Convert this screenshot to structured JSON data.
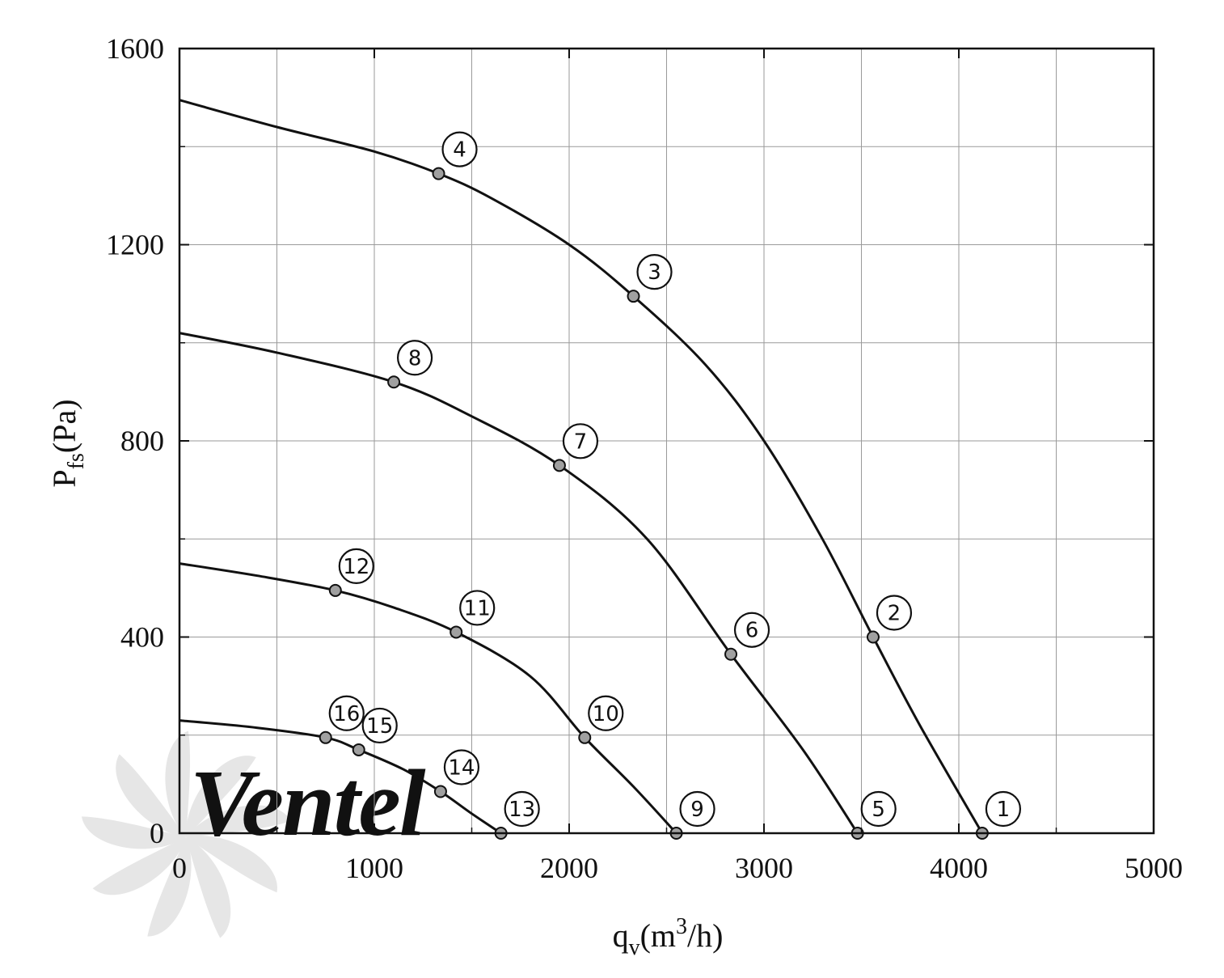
{
  "colors": {
    "curve": "#111111",
    "marker_fill": "#a0a0a0",
    "grid": "#9a9a9a",
    "frame": "#111111",
    "watermark": "#e6e6e6",
    "watermark_accent": "#d8e3ef"
  },
  "watermark": {
    "text": "Ventel"
  },
  "chart_data": {
    "type": "line",
    "title": "",
    "xlabel": {
      "main": "q",
      "sub": "v",
      "unit_open": "(m",
      "sup": "3",
      "unit_close": "/h)"
    },
    "ylabel": {
      "main": "P",
      "sub": "fs",
      "unit": "(Pa)"
    },
    "xlim": [
      0,
      5000
    ],
    "ylim": [
      0,
      1600
    ],
    "x_ticks": [
      0,
      1000,
      2000,
      3000,
      4000,
      5000
    ],
    "x_tick_labels": [
      "0",
      "1000",
      "2000",
      "3000",
      "4000",
      "5000"
    ],
    "y_ticks": [
      0,
      400,
      800,
      1200,
      1600
    ],
    "y_tick_labels": [
      "0",
      "400",
      "800",
      "1200",
      "1600"
    ],
    "grid": true,
    "series": [
      {
        "name": "curve-1",
        "curve": [
          [
            0,
            1495
          ],
          [
            500,
            1440
          ],
          [
            1000,
            1390
          ],
          [
            1330,
            1345
          ],
          [
            1600,
            1295
          ],
          [
            2000,
            1200
          ],
          [
            2330,
            1095
          ],
          [
            2700,
            955
          ],
          [
            3000,
            800
          ],
          [
            3300,
            600
          ],
          [
            3560,
            400
          ],
          [
            3800,
            220
          ],
          [
            4120,
            0
          ]
        ],
        "points": [
          {
            "label": "1",
            "x": 4120,
            "y": 0
          },
          {
            "label": "2",
            "x": 3560,
            "y": 400
          },
          {
            "label": "3",
            "x": 2330,
            "y": 1095
          },
          {
            "label": "4",
            "x": 1330,
            "y": 1345
          }
        ]
      },
      {
        "name": "curve-2",
        "curve": [
          [
            0,
            1020
          ],
          [
            500,
            980
          ],
          [
            1100,
            920
          ],
          [
            1500,
            850
          ],
          [
            1950,
            750
          ],
          [
            2400,
            600
          ],
          [
            2830,
            365
          ],
          [
            3200,
            170
          ],
          [
            3480,
            0
          ]
        ],
        "points": [
          {
            "label": "5",
            "x": 3480,
            "y": 0
          },
          {
            "label": "6",
            "x": 2830,
            "y": 365
          },
          {
            "label": "7",
            "x": 1950,
            "y": 750
          },
          {
            "label": "8",
            "x": 1100,
            "y": 920
          }
        ]
      },
      {
        "name": "curve-3",
        "curve": [
          [
            0,
            550
          ],
          [
            400,
            525
          ],
          [
            800,
            495
          ],
          [
            1100,
            460
          ],
          [
            1420,
            410
          ],
          [
            1800,
            320
          ],
          [
            2080,
            195
          ],
          [
            2330,
            95
          ],
          [
            2550,
            0
          ]
        ],
        "points": [
          {
            "label": "9",
            "x": 2550,
            "y": 0
          },
          {
            "label": "10",
            "x": 2080,
            "y": 195
          },
          {
            "label": "11",
            "x": 1420,
            "y": 410
          },
          {
            "label": "12",
            "x": 800,
            "y": 495
          }
        ]
      },
      {
        "name": "curve-4",
        "curve": [
          [
            0,
            230
          ],
          [
            400,
            215
          ],
          [
            750,
            195
          ],
          [
            920,
            170
          ],
          [
            1150,
            130
          ],
          [
            1340,
            85
          ],
          [
            1500,
            40
          ],
          [
            1650,
            0
          ]
        ],
        "points": [
          {
            "label": "13",
            "x": 1650,
            "y": 0
          },
          {
            "label": "14",
            "x": 1340,
            "y": 85
          },
          {
            "label": "15",
            "x": 920,
            "y": 170
          },
          {
            "label": "16",
            "x": 750,
            "y": 195
          }
        ]
      }
    ]
  }
}
